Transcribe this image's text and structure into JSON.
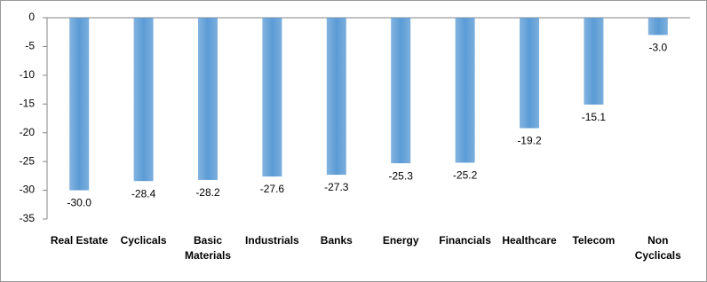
{
  "chart_data": {
    "type": "bar",
    "categories": [
      "Real Estate",
      "Cyclicals",
      "Basic Materials",
      "Industrials",
      "Banks",
      "Energy",
      "Financials",
      "Healthcare",
      "Telecom",
      "Non Cyclicals"
    ],
    "values": [
      -30.0,
      -28.4,
      -28.2,
      -27.6,
      -27.3,
      -25.3,
      -25.2,
      -19.2,
      -15.1,
      -3.0
    ],
    "value_labels": [
      "-30.0",
      "-28.4",
      "-28.2",
      "-27.6",
      "-27.3",
      "-25.3",
      "-25.2",
      "-19.2",
      "-15.1",
      "-3.0"
    ],
    "color": "#5b9bd5",
    "ylim": [
      -35,
      0
    ],
    "yticks": [
      0,
      -5,
      -10,
      -15,
      -20,
      -25,
      -30,
      -35
    ],
    "grid": false
  }
}
